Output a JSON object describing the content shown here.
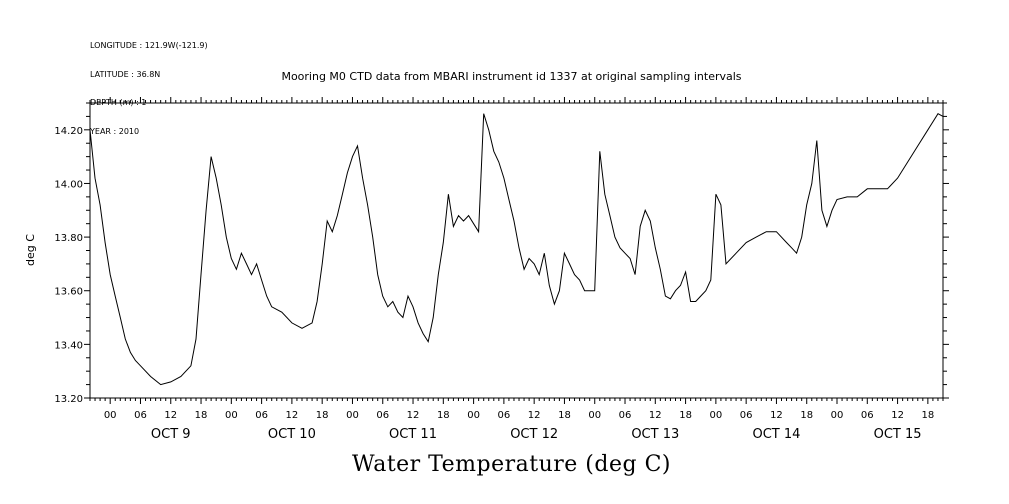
{
  "meta_lines": [
    "LONGITUDE : 121.9W(-121.9)",
    "LATITUDE : 36.8N",
    "DEPTH (m) : 1",
    "YEAR : 2010"
  ],
  "chart_data": {
    "type": "line",
    "title": "Mooring M0 CTD data from MBARI instrument id 1337 at original sampling intervals",
    "footer_title": "Water Temperature (deg C)",
    "ylabel": "deg C",
    "xlabel": "",
    "ylim": [
      13.2,
      14.3
    ],
    "xlim": [
      "2010-10-08T20:00",
      "2010-10-15T21:00"
    ],
    "y_ticks": [
      "13.20",
      "13.40",
      "13.60",
      "13.80",
      "14.00",
      "14.20"
    ],
    "x_hour_ticks": [
      "00",
      "06",
      "12",
      "18",
      "00",
      "06",
      "12",
      "18",
      "00",
      "06",
      "12",
      "18",
      "00",
      "06",
      "12",
      "18",
      "00",
      "06",
      "12",
      "18",
      "00",
      "06",
      "12",
      "18",
      "00",
      "06",
      "12",
      "18"
    ],
    "x_day_labels": [
      "OCT  9",
      "OCT 10",
      "OCT 11",
      "OCT 12",
      "OCT 13",
      "OCT 14",
      "OCT 15"
    ],
    "grid": false,
    "series": [
      {
        "values": [
          [
            "2010-10-08T20:00",
            14.2
          ],
          [
            "2010-10-08T21:00",
            14.02
          ],
          [
            "2010-10-08T22:00",
            13.92
          ],
          [
            "2010-10-08T23:00",
            13.78
          ],
          [
            "2010-10-09T00:00",
            13.66
          ],
          [
            "2010-10-09T01:00",
            13.58
          ],
          [
            "2010-10-09T02:00",
            13.5
          ],
          [
            "2010-10-09T03:00",
            13.42
          ],
          [
            "2010-10-09T04:00",
            13.37
          ],
          [
            "2010-10-09T05:00",
            13.34
          ],
          [
            "2010-10-09T06:00",
            13.32
          ],
          [
            "2010-10-09T08:00",
            13.28
          ],
          [
            "2010-10-09T10:00",
            13.25
          ],
          [
            "2010-10-09T12:00",
            13.26
          ],
          [
            "2010-10-09T14:00",
            13.28
          ],
          [
            "2010-10-09T16:00",
            13.32
          ],
          [
            "2010-10-09T17:00",
            13.42
          ],
          [
            "2010-10-09T18:00",
            13.66
          ],
          [
            "2010-10-09T19:00",
            13.9
          ],
          [
            "2010-10-09T20:00",
            14.1
          ],
          [
            "2010-10-09T21:00",
            14.02
          ],
          [
            "2010-10-09T22:00",
            13.92
          ],
          [
            "2010-10-09T23:00",
            13.8
          ],
          [
            "2010-10-10T00:00",
            13.72
          ],
          [
            "2010-10-10T01:00",
            13.68
          ],
          [
            "2010-10-10T02:00",
            13.74
          ],
          [
            "2010-10-10T03:00",
            13.7
          ],
          [
            "2010-10-10T04:00",
            13.66
          ],
          [
            "2010-10-10T05:00",
            13.7
          ],
          [
            "2010-10-10T06:00",
            13.64
          ],
          [
            "2010-10-10T07:00",
            13.58
          ],
          [
            "2010-10-10T08:00",
            13.54
          ],
          [
            "2010-10-10T10:00",
            13.52
          ],
          [
            "2010-10-10T12:00",
            13.48
          ],
          [
            "2010-10-10T14:00",
            13.46
          ],
          [
            "2010-10-10T16:00",
            13.48
          ],
          [
            "2010-10-10T17:00",
            13.56
          ],
          [
            "2010-10-10T18:00",
            13.7
          ],
          [
            "2010-10-10T19:00",
            13.86
          ],
          [
            "2010-10-10T20:00",
            13.82
          ],
          [
            "2010-10-10T21:00",
            13.88
          ],
          [
            "2010-10-10T22:00",
            13.96
          ],
          [
            "2010-10-10T23:00",
            14.04
          ],
          [
            "2010-10-11T00:00",
            14.1
          ],
          [
            "2010-10-11T01:00",
            14.14
          ],
          [
            "2010-10-11T02:00",
            14.02
          ],
          [
            "2010-10-11T03:00",
            13.92
          ],
          [
            "2010-10-11T04:00",
            13.8
          ],
          [
            "2010-10-11T05:00",
            13.66
          ],
          [
            "2010-10-11T06:00",
            13.58
          ],
          [
            "2010-10-11T07:00",
            13.54
          ],
          [
            "2010-10-11T08:00",
            13.56
          ],
          [
            "2010-10-11T09:00",
            13.52
          ],
          [
            "2010-10-11T10:00",
            13.5
          ],
          [
            "2010-10-11T11:00",
            13.58
          ],
          [
            "2010-10-11T12:00",
            13.54
          ],
          [
            "2010-10-11T13:00",
            13.48
          ],
          [
            "2010-10-11T14:00",
            13.44
          ],
          [
            "2010-10-11T15:00",
            13.41
          ],
          [
            "2010-10-11T16:00",
            13.5
          ],
          [
            "2010-10-11T17:00",
            13.66
          ],
          [
            "2010-10-11T18:00",
            13.78
          ],
          [
            "2010-10-11T19:00",
            13.96
          ],
          [
            "2010-10-11T20:00",
            13.84
          ],
          [
            "2010-10-11T21:00",
            13.88
          ],
          [
            "2010-10-11T22:00",
            13.86
          ],
          [
            "2010-10-11T23:00",
            13.88
          ],
          [
            "2010-10-12T00:00",
            13.85
          ],
          [
            "2010-10-12T01:00",
            13.82
          ],
          [
            "2010-10-12T02:00",
            14.26
          ],
          [
            "2010-10-12T03:00",
            14.2
          ],
          [
            "2010-10-12T04:00",
            14.12
          ],
          [
            "2010-10-12T05:00",
            14.08
          ],
          [
            "2010-10-12T06:00",
            14.02
          ],
          [
            "2010-10-12T07:00",
            13.94
          ],
          [
            "2010-10-12T08:00",
            13.86
          ],
          [
            "2010-10-12T09:00",
            13.76
          ],
          [
            "2010-10-12T10:00",
            13.68
          ],
          [
            "2010-10-12T11:00",
            13.72
          ],
          [
            "2010-10-12T12:00",
            13.7
          ],
          [
            "2010-10-12T13:00",
            13.66
          ],
          [
            "2010-10-12T14:00",
            13.74
          ],
          [
            "2010-10-12T15:00",
            13.62
          ],
          [
            "2010-10-12T16:00",
            13.55
          ],
          [
            "2010-10-12T17:00",
            13.6
          ],
          [
            "2010-10-12T18:00",
            13.74
          ],
          [
            "2010-10-12T19:00",
            13.7
          ],
          [
            "2010-10-12T20:00",
            13.66
          ],
          [
            "2010-10-12T21:00",
            13.64
          ],
          [
            "2010-10-12T22:00",
            13.6
          ],
          [
            "2010-10-12T23:00",
            13.6
          ],
          [
            "2010-10-13T00:00",
            13.6
          ],
          [
            "2010-10-13T01:00",
            14.12
          ],
          [
            "2010-10-13T02:00",
            13.96
          ],
          [
            "2010-10-13T03:00",
            13.88
          ],
          [
            "2010-10-13T04:00",
            13.8
          ],
          [
            "2010-10-13T05:00",
            13.76
          ],
          [
            "2010-10-13T06:00",
            13.74
          ],
          [
            "2010-10-13T07:00",
            13.72
          ],
          [
            "2010-10-13T08:00",
            13.66
          ],
          [
            "2010-10-13T09:00",
            13.84
          ],
          [
            "2010-10-13T10:00",
            13.9
          ],
          [
            "2010-10-13T11:00",
            13.86
          ],
          [
            "2010-10-13T12:00",
            13.76
          ],
          [
            "2010-10-13T13:00",
            13.68
          ],
          [
            "2010-10-13T14:00",
            13.58
          ],
          [
            "2010-10-13T15:00",
            13.57
          ],
          [
            "2010-10-13T16:00",
            13.6
          ],
          [
            "2010-10-13T17:00",
            13.62
          ],
          [
            "2010-10-13T18:00",
            13.67
          ],
          [
            "2010-10-13T19:00",
            13.56
          ],
          [
            "2010-10-13T20:00",
            13.56
          ],
          [
            "2010-10-13T21:00",
            13.58
          ],
          [
            "2010-10-13T22:00",
            13.6
          ],
          [
            "2010-10-13T23:00",
            13.64
          ],
          [
            "2010-10-14T00:00",
            13.96
          ],
          [
            "2010-10-14T01:00",
            13.92
          ],
          [
            "2010-10-14T02:00",
            13.7
          ],
          [
            "2010-10-14T04:00",
            13.74
          ],
          [
            "2010-10-14T06:00",
            13.78
          ],
          [
            "2010-10-14T08:00",
            13.8
          ],
          [
            "2010-10-14T10:00",
            13.82
          ],
          [
            "2010-10-14T12:00",
            13.82
          ],
          [
            "2010-10-14T14:00",
            13.78
          ],
          [
            "2010-10-14T15:00",
            13.76
          ],
          [
            "2010-10-14T16:00",
            13.74
          ],
          [
            "2010-10-14T17:00",
            13.8
          ],
          [
            "2010-10-14T18:00",
            13.92
          ],
          [
            "2010-10-14T19:00",
            14.0
          ],
          [
            "2010-10-14T20:00",
            14.16
          ],
          [
            "2010-10-14T21:00",
            13.9
          ],
          [
            "2010-10-14T22:00",
            13.84
          ],
          [
            "2010-10-14T23:00",
            13.9
          ],
          [
            "2010-10-15T00:00",
            13.94
          ],
          [
            "2010-10-15T02:00",
            13.95
          ],
          [
            "2010-10-15T04:00",
            13.95
          ],
          [
            "2010-10-15T06:00",
            13.98
          ],
          [
            "2010-10-15T08:00",
            13.98
          ],
          [
            "2010-10-15T10:00",
            13.98
          ],
          [
            "2010-10-15T12:00",
            14.02
          ],
          [
            "2010-10-15T14:00",
            14.08
          ],
          [
            "2010-10-15T16:00",
            14.14
          ],
          [
            "2010-10-15T18:00",
            14.2
          ],
          [
            "2010-10-15T20:00",
            14.26
          ],
          [
            "2010-10-15T21:00",
            14.25
          ]
        ]
      }
    ]
  }
}
